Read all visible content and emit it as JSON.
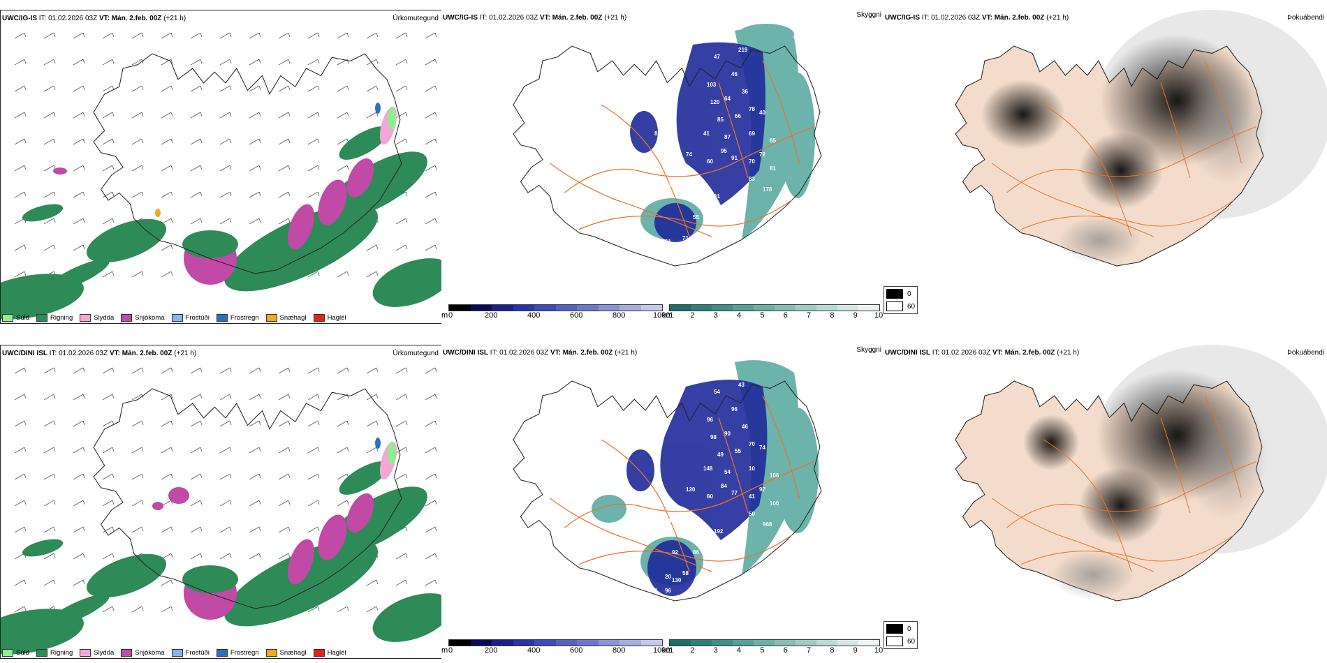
{
  "colors": {
    "suld": "#90ee90",
    "rigning": "#2e8b57",
    "slydda": "#f4a6d7",
    "snjokoma": "#c04aa6",
    "frostudi": "#87b4f0",
    "frostregn": "#2f6fc2",
    "snaehagl": "#f5a623",
    "haglel": "#e8201b",
    "land_tan": "#f3dccb",
    "road": "#e8742a",
    "cloud_low": "#1f2a9a",
    "cloud_high": "#3a9a8f"
  },
  "rows": [
    {
      "model_label": "UWC/IG-IS",
      "time_text": " IT: 01.02.2026 03Z ",
      "vt_label": "VT: Mán. 2.feb. 00Z",
      "lead": " (+21 h)",
      "title_precip": "Úrkomutegund",
      "title_ceiling": "Skyggni",
      "title_fog": "Þokuábendi",
      "ceiling_numbers": [
        "97",
        "47",
        "219",
        "103",
        "46",
        "36",
        "120",
        "64",
        "78",
        "85",
        "66",
        "40",
        "41",
        "87",
        "69",
        "65",
        "82",
        "95",
        "74",
        "60",
        "91",
        "70",
        "72",
        "81",
        "57",
        "31",
        "83",
        "178",
        "55",
        "25",
        "61",
        "7",
        "67",
        "34",
        "71",
        "7"
      ]
    },
    {
      "model_label": "UWC/DINI ISL",
      "time_text": " IT: 01.02.2026 03Z ",
      "vt_label": "VT: Mán. 2.feb. 00Z",
      "lead": " (+21 h)",
      "title_precip": "Úrkomutegund",
      "title_ceiling": "Skyggni",
      "title_fog": "Þokuábendi",
      "ceiling_numbers": [
        "58",
        "54",
        "43",
        "96",
        "96",
        "46",
        "98",
        "90",
        "70",
        "49",
        "55",
        "74",
        "148",
        "54",
        "10",
        "106",
        "76",
        "84",
        "120",
        "80",
        "77",
        "41",
        "97",
        "100",
        "64",
        "192",
        "50",
        "968",
        "86",
        "48",
        "20",
        "96",
        "44",
        "130",
        "58",
        "31",
        "56",
        "92"
      ]
    }
  ],
  "legend": [
    {
      "label": "Súld",
      "color_key": "suld"
    },
    {
      "label": "Rigning",
      "color_key": "rigning"
    },
    {
      "label": "Slydda",
      "color_key": "slydda"
    },
    {
      "label": "Snjókoma",
      "color_key": "snjokoma"
    },
    {
      "label": "Frostúði",
      "color_key": "frostudi"
    },
    {
      "label": "Frostregn",
      "color_key": "frostregn"
    },
    {
      "label": "Snæhagl",
      "color_key": "snaehagl"
    },
    {
      "label": "Haglél",
      "color_key": "haglel"
    }
  ],
  "cbar_m": {
    "unit": "m",
    "ticks": [
      "0",
      "200",
      "400",
      "600",
      "800",
      "1000"
    ]
  },
  "cbar_km": {
    "unit": "km",
    "ticks": [
      "1",
      "2",
      "3",
      "4",
      "5",
      "6",
      "7",
      "8",
      "9",
      "10"
    ]
  },
  "fog_legend": {
    "dark": "0",
    "light": "60"
  }
}
